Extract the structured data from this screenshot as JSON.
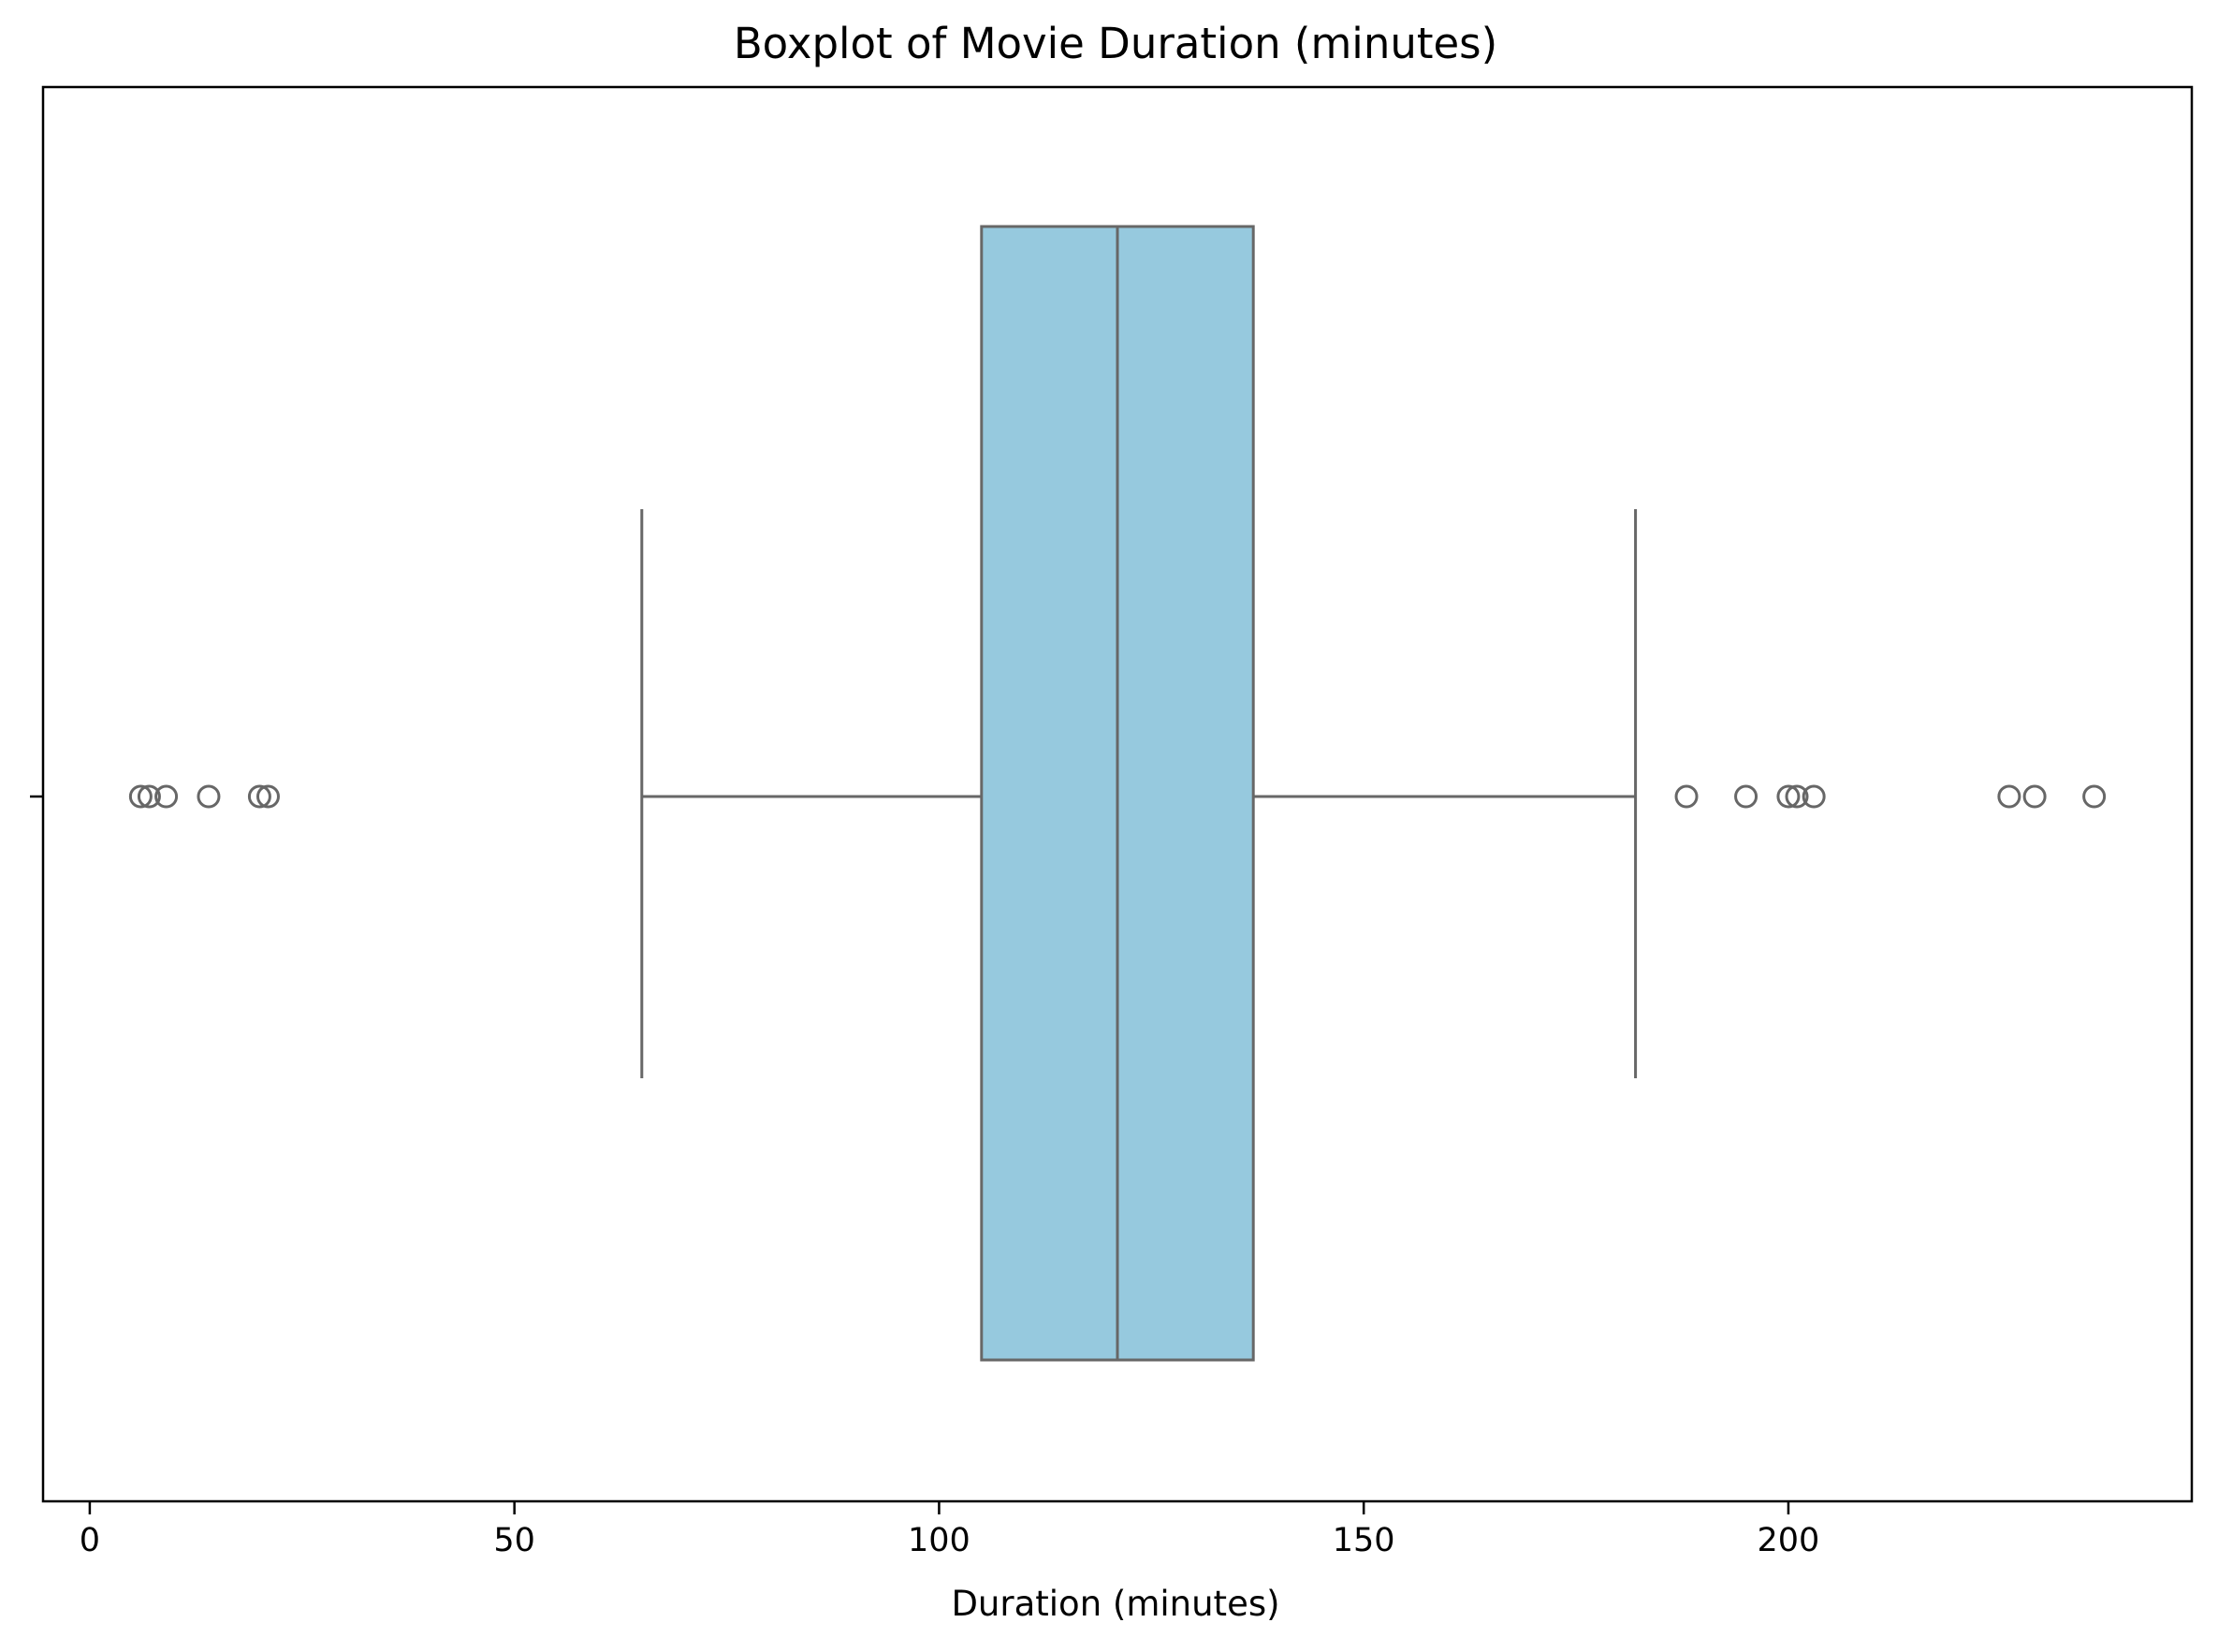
{
  "chart_data": {
    "type": "boxplot",
    "orientation": "horizontal",
    "title": "Boxplot of Movie Duration (minutes)",
    "xlabel": "Duration (minutes)",
    "ylabel": "",
    "xlim": [
      -5.5,
      247.5
    ],
    "xticks": [
      0,
      50,
      100,
      150,
      200
    ],
    "xtick_labels": [
      "0",
      "50",
      "100",
      "150",
      "200"
    ],
    "grid": false,
    "legend": "none",
    "box": {
      "whisker_low": 65,
      "q1": 105,
      "median": 121,
      "q3": 137,
      "whisker_high": 182
    },
    "outliers": [
      6,
      7,
      9,
      14,
      20,
      21,
      188,
      195,
      200,
      201,
      203,
      226,
      229,
      236
    ],
    "colors": {
      "box_fill": "#96c9de",
      "line": "#676767",
      "frame": "#000000"
    }
  }
}
